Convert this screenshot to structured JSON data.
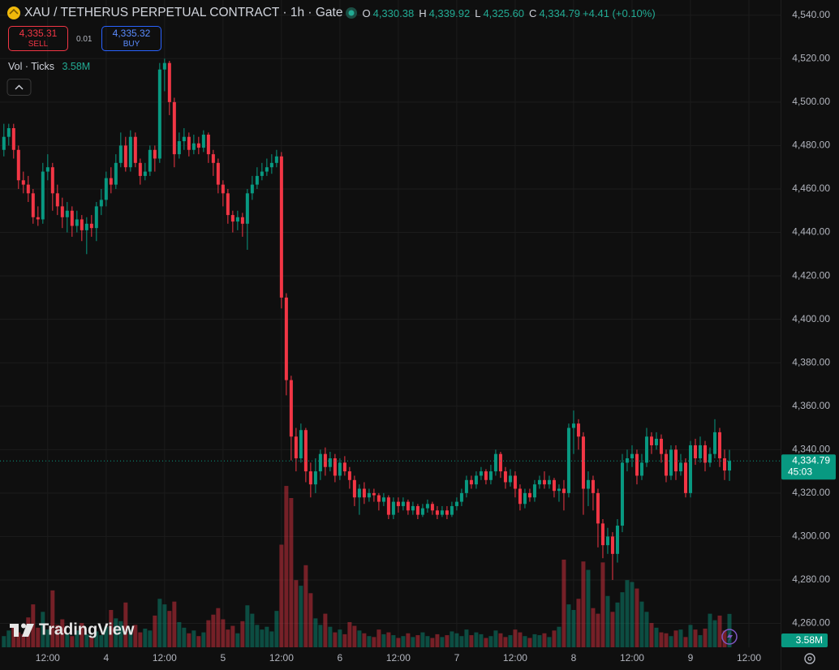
{
  "header": {
    "symbol": "XAU / TETHERUS PERPETUAL CONTRACT · 1h · Gate",
    "legend": [
      {
        "key": "O",
        "value": "4,330.38"
      },
      {
        "key": "H",
        "value": "4,339.92"
      },
      {
        "key": "L",
        "value": "4,325.60"
      },
      {
        "key": "C",
        "value": "4,334.79"
      }
    ],
    "change": "+4.41 (+0.10%)",
    "sell": {
      "price": "4,335.31",
      "label": "SELL"
    },
    "lot": "0.01",
    "buy": {
      "price": "4,335.32",
      "label": "BUY"
    },
    "indicator": "Vol · Ticks"
  },
  "watermark": "TradingView",
  "chart_data": {
    "type": "candlestick",
    "up_color": "#089981",
    "down_color": "#f23645",
    "open": [
      4478,
      4484,
      4488,
      4478,
      4464,
      4462,
      4458,
      4447,
      4446,
      4468,
      4470,
      4458,
      4452,
      4447,
      4450,
      4443,
      4446,
      4441,
      4444,
      4442,
      4452,
      4455,
      4465,
      4462,
      4472,
      4480,
      4470,
      4484,
      4472,
      4466,
      4468,
      4478,
      4474,
      4515,
      4518,
      4500,
      4476,
      4482,
      4484,
      4478,
      4481,
      4479,
      4485,
      4476,
      4472,
      4462,
      4458,
      4448,
      4445,
      4447,
      4444,
      4458,
      4462,
      4466,
      4468,
      4470,
      4472,
      4475,
      4410,
      4372,
      4346,
      4336,
      4349,
      4330,
      4324,
      4330,
      4338,
      4332,
      4336,
      4328,
      4334,
      4330,
      4326,
      4318,
      4322,
      4318,
      4320,
      4319,
      4316,
      4318,
      4310,
      4316,
      4314,
      4316,
      4312,
      4314,
      4310,
      4313,
      4315,
      4312,
      4310,
      4312,
      4310,
      4314,
      4316,
      4320,
      4326,
      4324,
      4328,
      4330,
      4326,
      4330,
      4338,
      4330,
      4325,
      4328,
      4322,
      4315,
      4320,
      4318,
      4324,
      4326,
      4324,
      4326,
      4321,
      4322,
      4320,
      4350,
      4352,
      4346,
      4322,
      4326,
      4320,
      4306,
      4296,
      4300,
      4292,
      4305,
      4334,
      4336,
      4338,
      4328,
      4334,
      4346,
      4342,
      4345,
      4338,
      4328,
      4340,
      4330,
      4334,
      4320,
      4342,
      4336,
      4342,
      4334,
      4338,
      4348,
      4336,
      4330.38
    ],
    "high": [
      4490,
      4490,
      4490,
      4480,
      4468,
      4466,
      4460,
      4452,
      4472,
      4476,
      4472,
      4462,
      4456,
      4454,
      4452,
      4450,
      4448,
      4447,
      4448,
      4454,
      4460,
      4468,
      4470,
      4476,
      4486,
      4484,
      4487,
      4486,
      4474,
      4472,
      4480,
      4480,
      4518,
      4520,
      4519,
      4502,
      4486,
      4488,
      4486,
      4485,
      4484,
      4487,
      4486,
      4478,
      4474,
      4464,
      4460,
      4450,
      4450,
      4449,
      4460,
      4466,
      4470,
      4472,
      4474,
      4476,
      4478,
      4477,
      4412,
      4374,
      4350,
      4352,
      4350,
      4334,
      4336,
      4340,
      4341,
      4339,
      4338,
      4336,
      4337,
      4332,
      4328,
      4324,
      4325,
      4322,
      4322,
      4320,
      4320,
      4319,
      4318,
      4318,
      4318,
      4317,
      4316,
      4315,
      4315,
      4317,
      4316,
      4314,
      4314,
      4314,
      4316,
      4318,
      4322,
      4328,
      4328,
      4330,
      4332,
      4331,
      4333,
      4340,
      4339,
      4332,
      4331,
      4330,
      4324,
      4322,
      4322,
      4326,
      4328,
      4330,
      4328,
      4327,
      4324,
      4326,
      4352,
      4358,
      4354,
      4348,
      4330,
      4328,
      4322,
      4308,
      4304,
      4302,
      4308,
      4338,
      4340,
      4342,
      4340,
      4338,
      4350,
      4348,
      4348,
      4347,
      4340,
      4342,
      4342,
      4338,
      4336,
      4344,
      4345,
      4346,
      4344,
      4341,
      4354,
      4350,
      4340,
      4339.92
    ],
    "low": [
      4475,
      4480,
      4474,
      4460,
      4458,
      4454,
      4444,
      4443,
      4444,
      4464,
      4450,
      4448,
      4442,
      4440,
      4438,
      4440,
      4436,
      4430,
      4438,
      4436,
      4448,
      4452,
      4458,
      4460,
      4470,
      4468,
      4468,
      4470,
      4462,
      4464,
      4466,
      4468,
      4472,
      4505,
      4494,
      4470,
      4474,
      4478,
      4475,
      4476,
      4476,
      4477,
      4472,
      4466,
      4458,
      4452,
      4444,
      4440,
      4441,
      4438,
      4432,
      4455,
      4460,
      4464,
      4466,
      4467,
      4470,
      4405,
      4365,
      4335,
      4330,
      4334,
      4325,
      4318,
      4320,
      4326,
      4328,
      4330,
      4325,
      4326,
      4328,
      4322,
      4314,
      4310,
      4315,
      4316,
      4316,
      4312,
      4314,
      4308,
      4308,
      4311,
      4312,
      4310,
      4310,
      4308,
      4309,
      4311,
      4310,
      4308,
      4309,
      4308,
      4309,
      4312,
      4314,
      4318,
      4322,
      4322,
      4326,
      4324,
      4324,
      4328,
      4327,
      4322,
      4323,
      4318,
      4312,
      4313,
      4316,
      4316,
      4322,
      4322,
      4322,
      4318,
      4316,
      4312,
      4318,
      4338,
      4340,
      4310,
      4314,
      4312,
      4295,
      4290,
      4292,
      4280,
      4288,
      4302,
      4330,
      4332,
      4324,
      4326,
      4332,
      4338,
      4340,
      4334,
      4325,
      4326,
      4326,
      4328,
      4318,
      4318,
      4333,
      4334,
      4330,
      4332,
      4336,
      4332,
      4326,
      4325.6
    ],
    "close": [
      4484,
      4488,
      4478,
      4464,
      4462,
      4458,
      4447,
      4446,
      4468,
      4470,
      4458,
      4452,
      4447,
      4450,
      4443,
      4446,
      4441,
      4444,
      4442,
      4452,
      4455,
      4465,
      4462,
      4472,
      4480,
      4470,
      4484,
      4472,
      4466,
      4468,
      4478,
      4474,
      4515,
      4518,
      4500,
      4476,
      4482,
      4484,
      4478,
      4481,
      4479,
      4485,
      4476,
      4472,
      4462,
      4458,
      4448,
      4445,
      4447,
      4444,
      4458,
      4462,
      4466,
      4468,
      4470,
      4472,
      4475,
      4410,
      4372,
      4346,
      4336,
      4349,
      4330,
      4324,
      4330,
      4338,
      4332,
      4336,
      4328,
      4334,
      4330,
      4326,
      4318,
      4322,
      4318,
      4320,
      4319,
      4316,
      4318,
      4310,
      4316,
      4314,
      4316,
      4312,
      4314,
      4310,
      4313,
      4315,
      4312,
      4310,
      4312,
      4310,
      4314,
      4316,
      4320,
      4326,
      4324,
      4328,
      4330,
      4326,
      4330,
      4338,
      4330,
      4325,
      4328,
      4322,
      4315,
      4320,
      4318,
      4324,
      4326,
      4324,
      4326,
      4321,
      4322,
      4320,
      4350,
      4352,
      4346,
      4322,
      4326,
      4320,
      4306,
      4296,
      4300,
      4292,
      4305,
      4334,
      4336,
      4338,
      4328,
      4334,
      4346,
      4342,
      4345,
      4338,
      4328,
      4340,
      4330,
      4334,
      4320,
      4342,
      4336,
      4342,
      4334,
      4338,
      4348,
      4336,
      4330.38,
      4334.79
    ],
    "volume": [
      1.2,
      1.8,
      2.5,
      1.6,
      1.4,
      3.2,
      4.6,
      2.1,
      3.8,
      1.9,
      6.1,
      2.4,
      3.0,
      1.5,
      1.2,
      1.8,
      2.6,
      1.4,
      1.1,
      1.7,
      1.3,
      2.2,
      4.0,
      3.1,
      2.8,
      4.8,
      1.9,
      2.4,
      1.6,
      2.0,
      1.8,
      3.4,
      5.2,
      4.6,
      3.9,
      4.9,
      2.7,
      2.1,
      1.5,
      1.8,
      1.2,
      1.6,
      2.9,
      3.5,
      4.2,
      3.0,
      1.9,
      2.3,
      1.5,
      2.8,
      4.5,
      3.6,
      2.4,
      1.9,
      2.2,
      1.7,
      3.9,
      11.0,
      17.3,
      16.0,
      7.2,
      6.6,
      8.8,
      5.8,
      3.1,
      2.4,
      3.6,
      2.2,
      1.6,
      1.9,
      1.4,
      2.7,
      2.3,
      1.8,
      1.5,
      1.2,
      1.1,
      1.9,
      1.4,
      1.6,
      1.3,
      1.0,
      1.2,
      1.5,
      1.1,
      1.3,
      1.6,
      1.2,
      1.0,
      1.4,
      1.1,
      1.3,
      1.7,
      1.5,
      1.2,
      1.9,
      1.3,
      1.6,
      1.4,
      1.0,
      1.2,
      1.8,
      1.5,
      1.1,
      1.3,
      1.9,
      1.6,
      1.2,
      1.0,
      1.4,
      1.3,
      1.5,
      1.1,
      1.8,
      2.2,
      9.4,
      4.6,
      4.0,
      5.2,
      9.2,
      8.3,
      4.2,
      3.6,
      9.1,
      5.5,
      3.8,
      4.8,
      5.9,
      7.2,
      7.0,
      6.3,
      4.9,
      3.8,
      2.6,
      2.1,
      1.6,
      1.5,
      1.2,
      1.8,
      1.9,
      1.1,
      2.4,
      1.9,
      1.3,
      2.0,
      3.6,
      2.9,
      3.4,
      1.8,
      3.58
    ],
    "volume_label": "3.58M",
    "last_label": "4,334.79",
    "countdown": "45:03",
    "xlim": [
      -0.8,
      159.5
    ],
    "xticks": [
      {
        "value": 9,
        "label": "12:00"
      },
      {
        "value": 21,
        "label": "4"
      },
      {
        "value": 33,
        "label": "12:00"
      },
      {
        "value": 45,
        "label": "5"
      },
      {
        "value": 57,
        "label": "12:00"
      },
      {
        "value": 69,
        "label": "6"
      },
      {
        "value": 81,
        "label": "12:00"
      },
      {
        "value": 93,
        "label": "7"
      },
      {
        "value": 105,
        "label": "12:00"
      },
      {
        "value": 117,
        "label": "8"
      },
      {
        "value": 129,
        "label": "12:00"
      },
      {
        "value": 141,
        "label": "9"
      },
      {
        "value": 153,
        "label": "12:00"
      }
    ],
    "ylim": [
      4249,
      4547
    ],
    "yticks": [
      {
        "value": 4260,
        "label": "4,260.00"
      },
      {
        "value": 4280,
        "label": "4,280.00"
      },
      {
        "value": 4300,
        "label": "4,300.00"
      },
      {
        "value": 4320,
        "label": "4,320.00"
      },
      {
        "value": 4340,
        "label": "4,340.00"
      },
      {
        "value": 4360,
        "label": "4,360.00"
      },
      {
        "value": 4380,
        "label": "4,380.00"
      },
      {
        "value": 4400,
        "label": "4,400.00"
      },
      {
        "value": 4420,
        "label": "4,420.00"
      },
      {
        "value": 4440,
        "label": "4,440.00"
      },
      {
        "value": 4460,
        "label": "4,460.00"
      },
      {
        "value": 4480,
        "label": "4,480.00"
      },
      {
        "value": 4500,
        "label": "4,500.00"
      },
      {
        "value": 4520,
        "label": "4,520.00"
      },
      {
        "value": 4540,
        "label": "4,540.00"
      }
    ],
    "grid": true
  }
}
